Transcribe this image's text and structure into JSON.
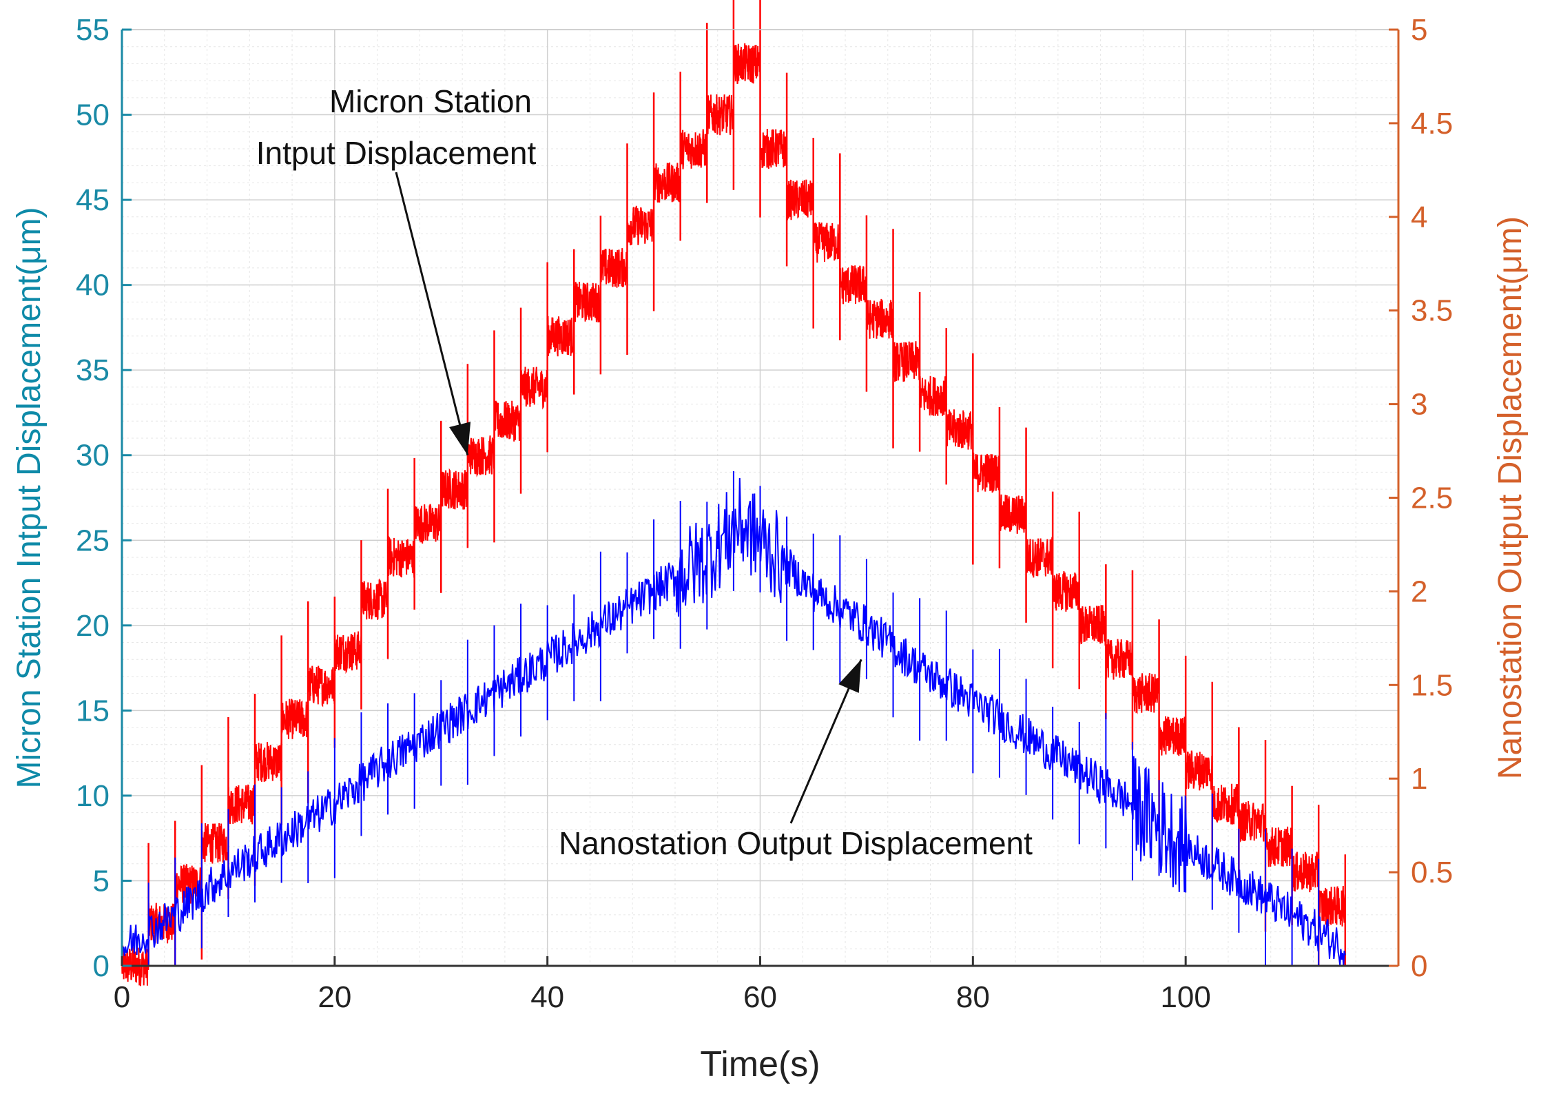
{
  "chart_data": {
    "type": "line",
    "title": "",
    "xlabel": "Time(s)",
    "ylabel_left": "Micron Station Intput Displacement(μm)",
    "ylabel_right": "Nanostation Output Displacement(μm)",
    "xlim": [
      0,
      120
    ],
    "ylim_left": [
      0,
      55
    ],
    "ylim_right": [
      0,
      5
    ],
    "grid": true,
    "x_ticks": [
      "0",
      "20",
      "40",
      "60",
      "80",
      "100"
    ],
    "y_left_ticks": [
      "0",
      "5",
      "10",
      "15",
      "20",
      "25",
      "30",
      "35",
      "40",
      "45",
      "50",
      "55"
    ],
    "y_right_ticks": [
      "0",
      "0.5",
      "1",
      "1.5",
      "2",
      "2.5",
      "3",
      "3.5",
      "4",
      "4.5",
      "5"
    ],
    "colors": {
      "micron": "#ff0000",
      "nano": "#0000ff",
      "left_axis": "#1a8aa6",
      "right_axis": "#d4602a"
    },
    "series": [
      {
        "name": "Micron Station Intput Displacement",
        "axis": "left",
        "color": "#ff0000",
        "x": [
          0,
          2.5,
          5,
          7.5,
          10,
          12.5,
          15,
          17.5,
          20,
          22.5,
          25,
          27.5,
          30,
          32.5,
          35,
          37.5,
          40,
          42.5,
          45,
          47.5,
          50,
          52.5,
          55,
          57.5,
          60,
          62.5,
          65,
          67.5,
          70,
          72.5,
          75,
          77.5,
          80,
          82.5,
          85,
          87.5,
          90,
          92.5,
          95,
          97.5,
          100,
          102.5,
          105,
          107.5,
          110,
          112.5,
          115
        ],
        "y": [
          0,
          2.5,
          4.8,
          7.2,
          9.5,
          12,
          14.5,
          16.5,
          18.5,
          21.5,
          24,
          26,
          28,
          30,
          32,
          34,
          37,
          39,
          41,
          43.5,
          46,
          48,
          50,
          53,
          48,
          45,
          42.5,
          40,
          38,
          35.5,
          33.5,
          31.5,
          29,
          26.5,
          24,
          22,
          20,
          18,
          16,
          13.5,
          11.5,
          9.5,
          8.5,
          7,
          5.5,
          3.5,
          1
        ]
      },
      {
        "name": "Nanostation Output Displacement",
        "axis": "left",
        "color": "#0000ff",
        "x": [
          0,
          5,
          10,
          15,
          20,
          25,
          30,
          35,
          40,
          45,
          50,
          55,
          58,
          60,
          65,
          70,
          75,
          80,
          85,
          90,
          95,
          100,
          105,
          110,
          115
        ],
        "y": [
          1,
          3,
          5.5,
          7.5,
          9.5,
          12,
          14,
          16,
          18,
          20,
          22,
          24,
          26,
          25,
          22,
          20,
          17.5,
          15.5,
          13.5,
          11.5,
          9.5,
          7,
          5,
          3,
          1
        ]
      }
    ],
    "annotations": [
      {
        "line1": "Micron Station",
        "line2": "Intput Displacement",
        "target_x": 32.5,
        "target_y": 30
      },
      {
        "text": "Nanostation Output Displacement",
        "target_x": 69.5,
        "target_y": 18
      }
    ]
  }
}
